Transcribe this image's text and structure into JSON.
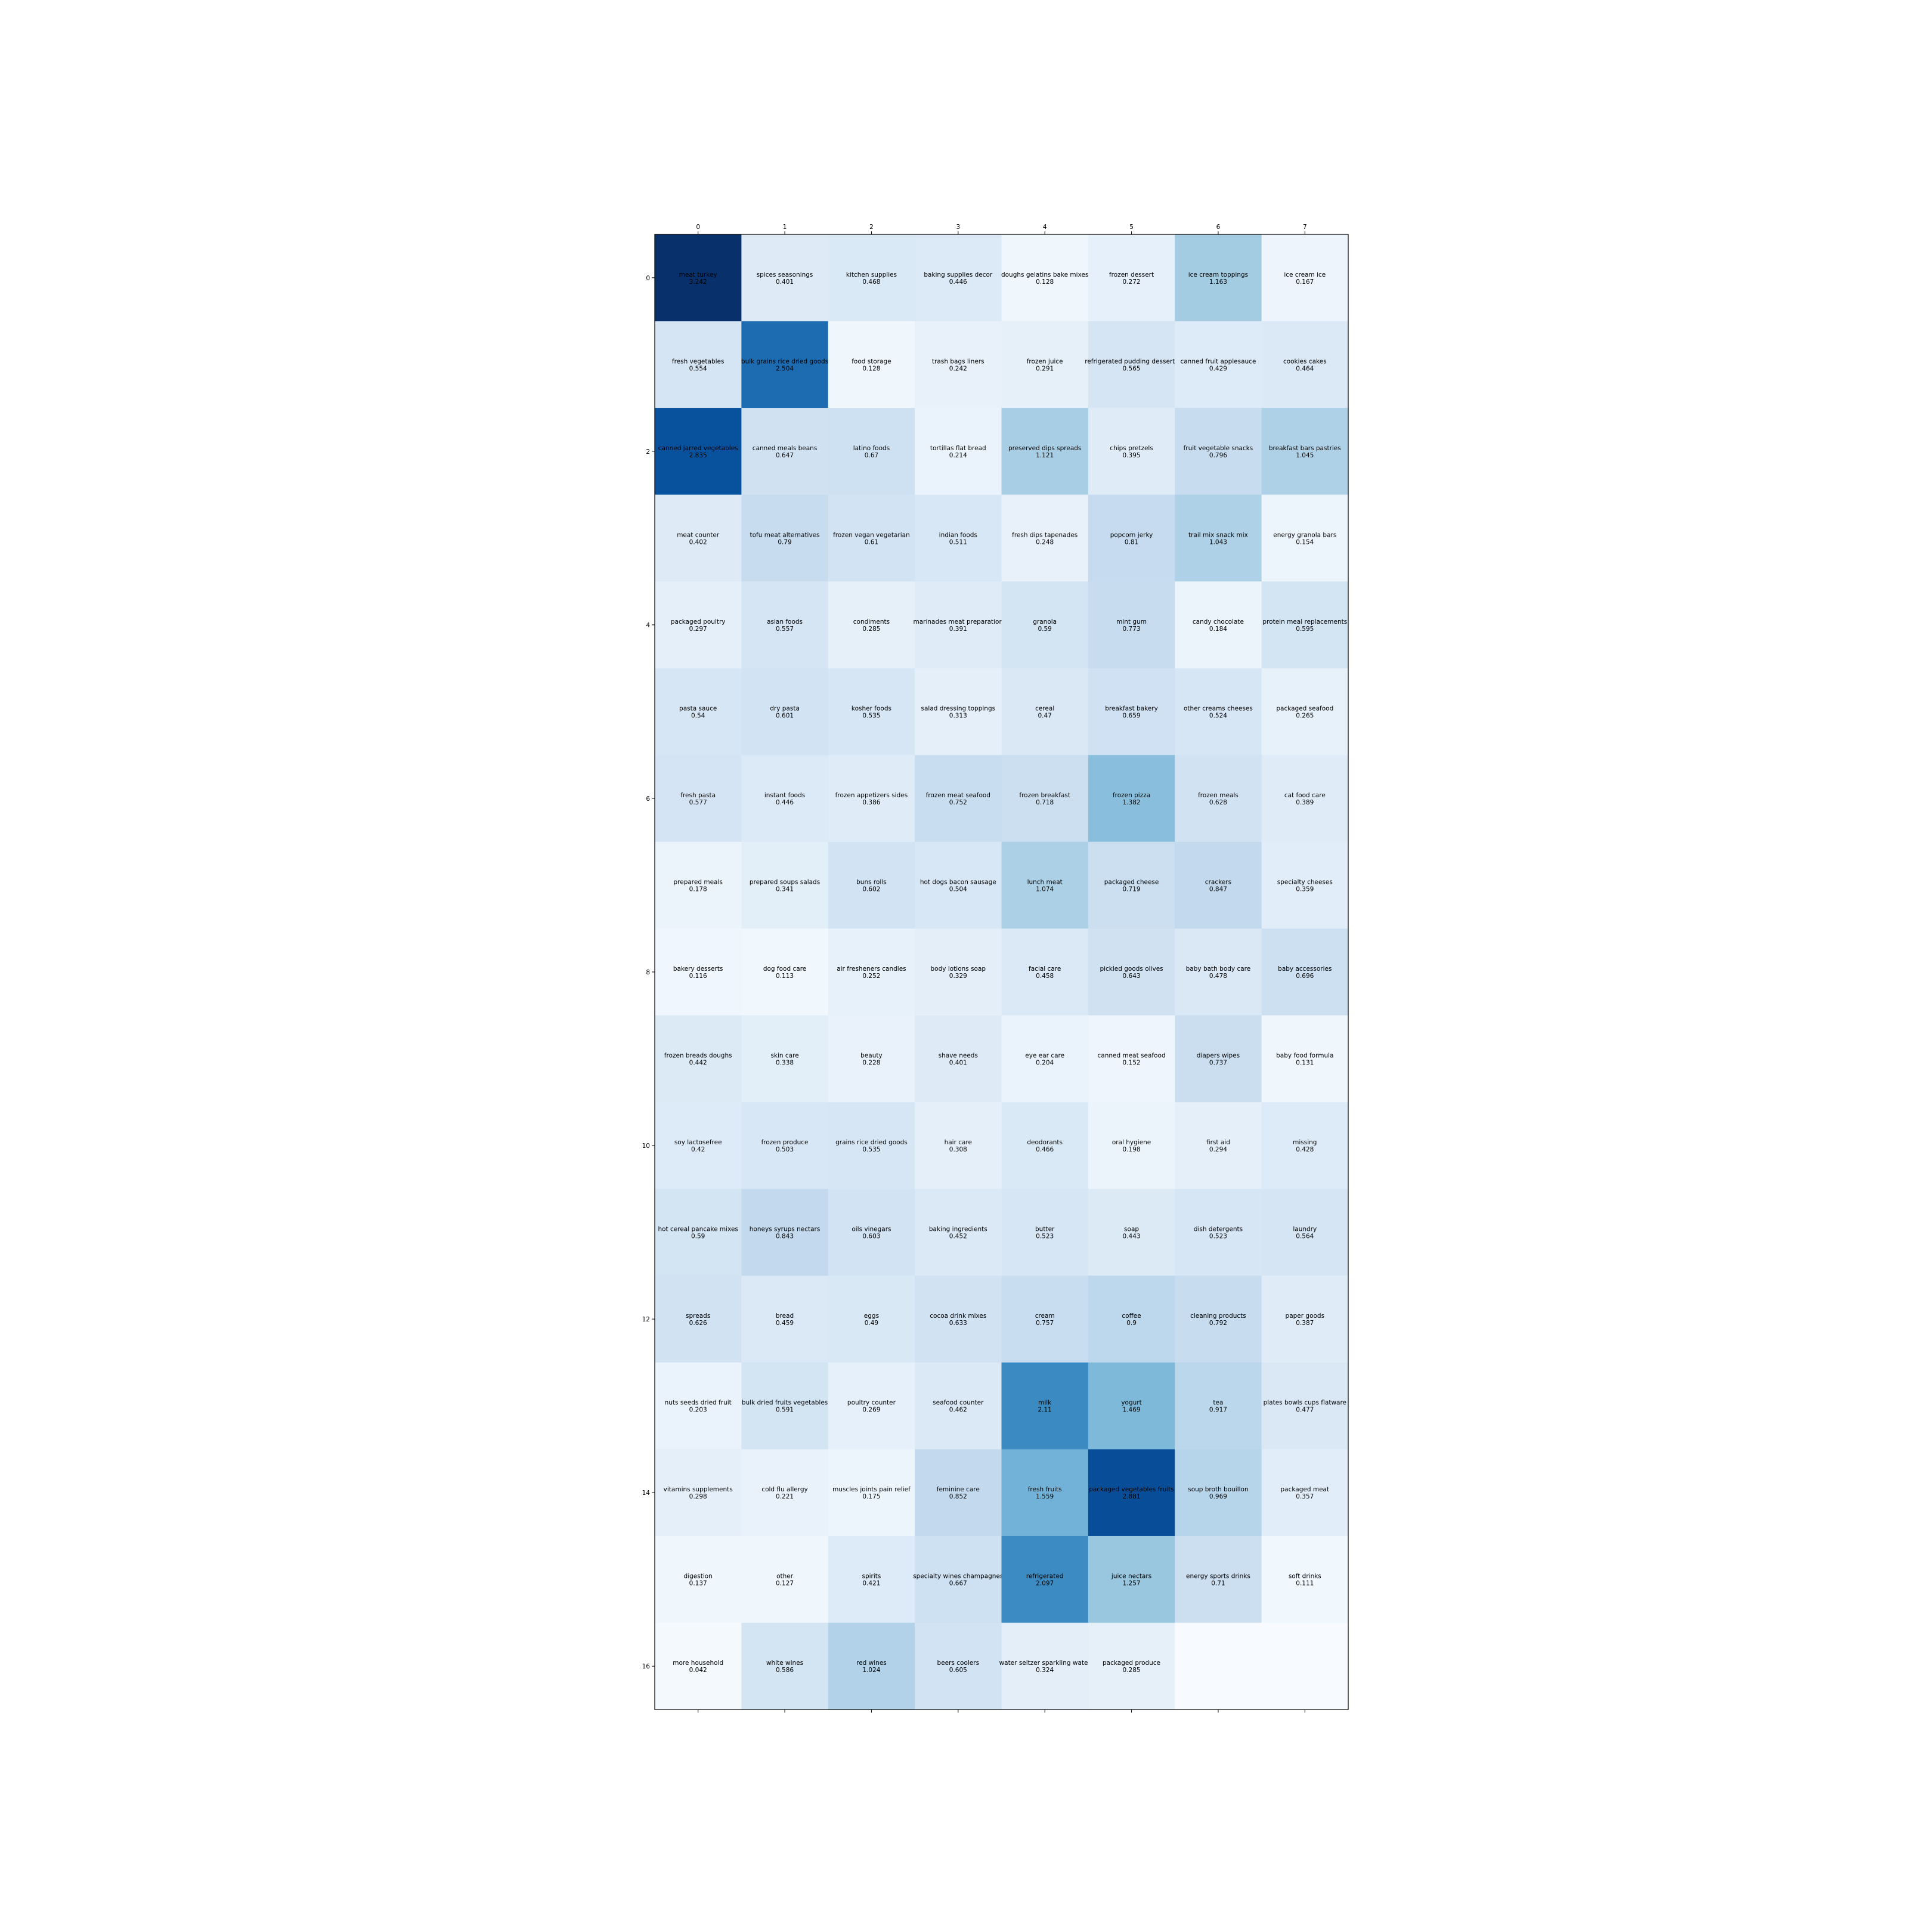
{
  "chart_data": {
    "type": "heatmap",
    "title": "",
    "xlabel": "",
    "ylabel": "",
    "colormap": "Blues",
    "value_range": [
      0,
      3.242
    ],
    "x_ticks": [
      "0",
      "1",
      "2",
      "3",
      "4",
      "5",
      "6",
      "7"
    ],
    "y_ticks": [
      "0",
      "2",
      "4",
      "6",
      "8",
      "10",
      "12",
      "14",
      "16"
    ],
    "x_tick_position": "top",
    "grid": false,
    "rows": [
      [
        {
          "label": "meat turkey",
          "value": 3.242
        },
        {
          "label": "spices seasonings",
          "value": 0.401
        },
        {
          "label": "kitchen supplies",
          "value": 0.468
        },
        {
          "label": "baking supplies decor",
          "value": 0.446
        },
        {
          "label": "doughs gelatins bake mixes",
          "value": 0.128
        },
        {
          "label": "frozen dessert",
          "value": 0.272
        },
        {
          "label": "ice cream toppings",
          "value": 1.163
        },
        {
          "label": "ice cream ice",
          "value": 0.167
        }
      ],
      [
        {
          "label": "fresh vegetables",
          "value": 0.554
        },
        {
          "label": "bulk grains rice dried goods",
          "value": 2.504
        },
        {
          "label": "food storage",
          "value": 0.128
        },
        {
          "label": "trash bags liners",
          "value": 0.242
        },
        {
          "label": "frozen juice",
          "value": 0.291
        },
        {
          "label": "refrigerated pudding desserts",
          "value": 0.565
        },
        {
          "label": "canned fruit applesauce",
          "value": 0.429
        },
        {
          "label": "cookies cakes",
          "value": 0.464
        }
      ],
      [
        {
          "label": "canned jarred vegetables",
          "value": 2.835
        },
        {
          "label": "canned meals beans",
          "value": 0.647
        },
        {
          "label": "latino foods",
          "value": 0.67
        },
        {
          "label": "tortillas flat bread",
          "value": 0.214
        },
        {
          "label": "preserved dips spreads",
          "value": 1.121
        },
        {
          "label": "chips pretzels",
          "value": 0.395
        },
        {
          "label": "fruit vegetable snacks",
          "value": 0.796
        },
        {
          "label": "breakfast bars pastries",
          "value": 1.045
        }
      ],
      [
        {
          "label": "meat counter",
          "value": 0.402
        },
        {
          "label": "tofu meat alternatives",
          "value": 0.79
        },
        {
          "label": "frozen vegan vegetarian",
          "value": 0.61
        },
        {
          "label": "indian foods",
          "value": 0.511
        },
        {
          "label": "fresh dips tapenades",
          "value": 0.248
        },
        {
          "label": "popcorn jerky",
          "value": 0.81
        },
        {
          "label": "trail mix snack mix",
          "value": 1.043
        },
        {
          "label": "energy granola bars",
          "value": 0.154
        }
      ],
      [
        {
          "label": "packaged poultry",
          "value": 0.297
        },
        {
          "label": "asian foods",
          "value": 0.557
        },
        {
          "label": "condiments",
          "value": 0.285
        },
        {
          "label": "marinades meat preparation",
          "value": 0.391
        },
        {
          "label": "granola",
          "value": 0.59
        },
        {
          "label": "mint gum",
          "value": 0.773
        },
        {
          "label": "candy chocolate",
          "value": 0.184
        },
        {
          "label": "protein meal replacements",
          "value": 0.595
        }
      ],
      [
        {
          "label": "pasta sauce",
          "value": 0.54
        },
        {
          "label": "dry pasta",
          "value": 0.601
        },
        {
          "label": "kosher foods",
          "value": 0.535
        },
        {
          "label": "salad dressing toppings",
          "value": 0.313
        },
        {
          "label": "cereal",
          "value": 0.47
        },
        {
          "label": "breakfast bakery",
          "value": 0.659
        },
        {
          "label": "other creams cheeses",
          "value": 0.524
        },
        {
          "label": "packaged seafood",
          "value": 0.265
        }
      ],
      [
        {
          "label": "fresh pasta",
          "value": 0.577
        },
        {
          "label": "instant foods",
          "value": 0.446
        },
        {
          "label": "frozen appetizers sides",
          "value": 0.386
        },
        {
          "label": "frozen meat seafood",
          "value": 0.752
        },
        {
          "label": "frozen breakfast",
          "value": 0.718
        },
        {
          "label": "frozen pizza",
          "value": 1.382
        },
        {
          "label": "frozen meals",
          "value": 0.628
        },
        {
          "label": "cat food care",
          "value": 0.389
        }
      ],
      [
        {
          "label": "prepared meals",
          "value": 0.178
        },
        {
          "label": "prepared soups salads",
          "value": 0.341
        },
        {
          "label": "buns rolls",
          "value": 0.602
        },
        {
          "label": "hot dogs bacon sausage",
          "value": 0.504
        },
        {
          "label": "lunch meat",
          "value": 1.074
        },
        {
          "label": "packaged cheese",
          "value": 0.719
        },
        {
          "label": "crackers",
          "value": 0.847
        },
        {
          "label": "specialty cheeses",
          "value": 0.359
        }
      ],
      [
        {
          "label": "bakery desserts",
          "value": 0.116
        },
        {
          "label": "dog food care",
          "value": 0.113
        },
        {
          "label": "air fresheners candles",
          "value": 0.252
        },
        {
          "label": "body lotions soap",
          "value": 0.329
        },
        {
          "label": "facial care",
          "value": 0.458
        },
        {
          "label": "pickled goods olives",
          "value": 0.643
        },
        {
          "label": "baby bath body care",
          "value": 0.478
        },
        {
          "label": "baby accessories",
          "value": 0.696
        }
      ],
      [
        {
          "label": "frozen breads doughs",
          "value": 0.442
        },
        {
          "label": "skin care",
          "value": 0.338
        },
        {
          "label": "beauty",
          "value": 0.228
        },
        {
          "label": "shave needs",
          "value": 0.401
        },
        {
          "label": "eye ear care",
          "value": 0.204
        },
        {
          "label": "canned meat seafood",
          "value": 0.152
        },
        {
          "label": "diapers wipes",
          "value": 0.737
        },
        {
          "label": "baby food formula",
          "value": 0.131
        }
      ],
      [
        {
          "label": "soy lactosefree",
          "value": 0.42
        },
        {
          "label": "frozen produce",
          "value": 0.503
        },
        {
          "label": "grains rice dried goods",
          "value": 0.535
        },
        {
          "label": "hair care",
          "value": 0.308
        },
        {
          "label": "deodorants",
          "value": 0.466
        },
        {
          "label": "oral hygiene",
          "value": 0.198
        },
        {
          "label": "first aid",
          "value": 0.294
        },
        {
          "label": "missing",
          "value": 0.428
        }
      ],
      [
        {
          "label": "hot cereal pancake mixes",
          "value": 0.59
        },
        {
          "label": "honeys syrups nectars",
          "value": 0.843
        },
        {
          "label": "oils vinegars",
          "value": 0.603
        },
        {
          "label": "baking ingredients",
          "value": 0.452
        },
        {
          "label": "butter",
          "value": 0.523
        },
        {
          "label": "soap",
          "value": 0.443
        },
        {
          "label": "dish detergents",
          "value": 0.523
        },
        {
          "label": "laundry",
          "value": 0.564
        }
      ],
      [
        {
          "label": "spreads",
          "value": 0.626
        },
        {
          "label": "bread",
          "value": 0.459
        },
        {
          "label": "eggs",
          "value": 0.49
        },
        {
          "label": "cocoa drink mixes",
          "value": 0.633
        },
        {
          "label": "cream",
          "value": 0.757
        },
        {
          "label": "coffee",
          "value": 0.9
        },
        {
          "label": "cleaning products",
          "value": 0.792
        },
        {
          "label": "paper goods",
          "value": 0.387
        }
      ],
      [
        {
          "label": "nuts seeds dried fruit",
          "value": 0.203
        },
        {
          "label": "bulk dried fruits vegetables",
          "value": 0.591
        },
        {
          "label": "poultry counter",
          "value": 0.269
        },
        {
          "label": "seafood counter",
          "value": 0.462
        },
        {
          "label": "milk",
          "value": 2.11
        },
        {
          "label": "yogurt",
          "value": 1.469
        },
        {
          "label": "tea",
          "value": 0.917
        },
        {
          "label": "plates bowls cups flatware",
          "value": 0.477
        }
      ],
      [
        {
          "label": "vitamins supplements",
          "value": 0.298
        },
        {
          "label": "cold flu allergy",
          "value": 0.221
        },
        {
          "label": "muscles joints pain relief",
          "value": 0.175
        },
        {
          "label": "feminine care",
          "value": 0.852
        },
        {
          "label": "fresh fruits",
          "value": 1.559
        },
        {
          "label": "packaged vegetables fruits",
          "value": 2.881
        },
        {
          "label": "soup broth bouillon",
          "value": 0.969
        },
        {
          "label": "packaged meat",
          "value": 0.357
        }
      ],
      [
        {
          "label": "digestion",
          "value": 0.137
        },
        {
          "label": "other",
          "value": 0.127
        },
        {
          "label": "spirits",
          "value": 0.421
        },
        {
          "label": "specialty wines champagnes",
          "value": 0.667
        },
        {
          "label": "refrigerated",
          "value": 2.097
        },
        {
          "label": "juice nectars",
          "value": 1.257
        },
        {
          "label": "energy sports drinks",
          "value": 0.71
        },
        {
          "label": "soft drinks",
          "value": 0.111
        }
      ],
      [
        {
          "label": "more household",
          "value": 0.042
        },
        {
          "label": "white wines",
          "value": 0.586
        },
        {
          "label": "red wines",
          "value": 1.024
        },
        {
          "label": "beers coolers",
          "value": 0.605
        },
        {
          "label": "water seltzer sparkling water",
          "value": 0.324
        },
        {
          "label": "packaged produce",
          "value": 0.285
        },
        {
          "label": "",
          "value": null
        },
        {
          "label": "",
          "value": null
        }
      ]
    ]
  }
}
